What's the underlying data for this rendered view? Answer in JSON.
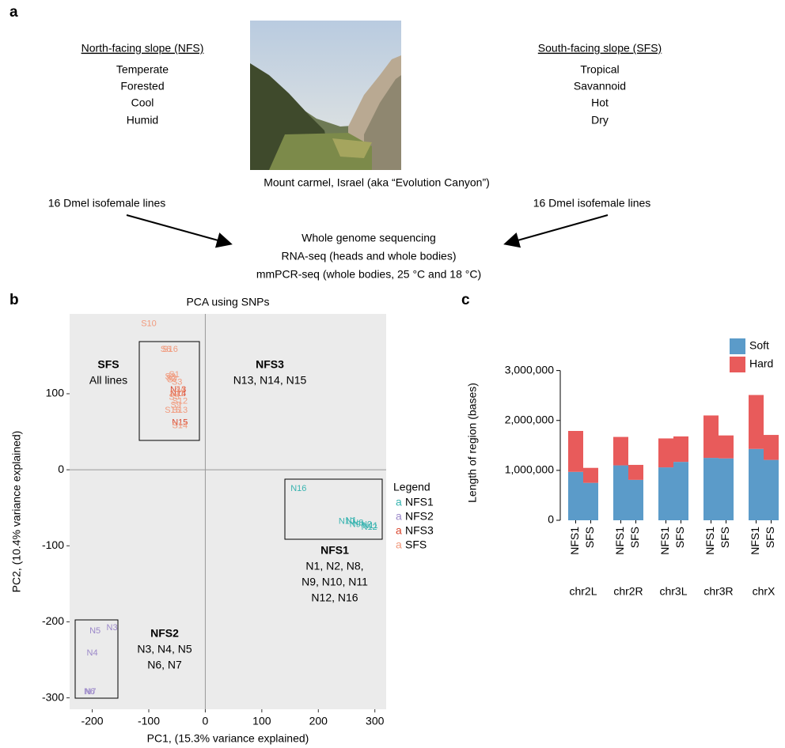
{
  "panel_a": {
    "panel_label": "a",
    "nfs_heading": "North-facing slope (NFS)",
    "nfs_traits": [
      "Temperate",
      "Forested",
      "Cool",
      "Humid"
    ],
    "sfs_heading": "South-facing slope (SFS)",
    "sfs_traits": [
      "Tropical",
      "Savannoid",
      "Hot",
      "Dry"
    ],
    "photo_caption": "Mount carmel, Israel (aka “Evolution Canyon”)",
    "left_lines": "16 Dmel isofemale lines",
    "right_lines": "16 Dmel isofemale lines",
    "methods": [
      "Whole genome sequencing",
      "RNA-seq (heads and whole bodies)",
      "mmPCR-seq (whole bodies, 25 °C and 18 °C)"
    ]
  },
  "chart_data": [
    {
      "type": "scatter",
      "panel_label": "b",
      "title": "PCA using SNPs",
      "x_label": "PC1, (15.3% variance explained)",
      "y_label": "PC2, (10.4% variance explained)",
      "xlim": [
        -240,
        320
      ],
      "ylim": [
        -315,
        205
      ],
      "xticks": [
        -200,
        -100,
        0,
        100,
        200,
        300
      ],
      "yticks": [
        -300,
        -200,
        -100,
        0,
        100
      ],
      "legend_title": "Legend",
      "legend_key_glyph": "a",
      "series": [
        {
          "name": "NFS1",
          "color": "#38b4b0",
          "labels": [
            "N16",
            "N10",
            "N1",
            "N9",
            "N8",
            "N2",
            "N12",
            "N11"
          ],
          "x": [
            165,
            250,
            258,
            265,
            270,
            285,
            290,
            292
          ],
          "y": [
            -25,
            -68,
            -67,
            -72,
            -70,
            -72,
            -76,
            -74
          ]
        },
        {
          "name": "NFS2",
          "color": "#9b88c9",
          "labels": [
            "N3",
            "N5",
            "N4",
            "N6",
            "N7"
          ],
          "x": [
            -165,
            -195,
            -200,
            -205,
            -203
          ],
          "y": [
            -208,
            -212,
            -241,
            -292,
            -292
          ]
        },
        {
          "name": "NFS3",
          "color": "#d9472f",
          "labels": [
            "N13",
            "N14",
            "N15"
          ],
          "x": [
            -48,
            -48,
            -45
          ],
          "y": [
            105,
            100,
            62
          ]
        },
        {
          "name": "SFS",
          "color": "#f19a7d",
          "labels": [
            "S10",
            "S6",
            "S16",
            "S1",
            "S8",
            "S2",
            "S7",
            "S3",
            "S4",
            "S11",
            "S5",
            "S12",
            "S9",
            "S13",
            "S15",
            "S14"
          ],
          "x": [
            -100,
            -70,
            -62,
            -55,
            -62,
            -60,
            -58,
            -50,
            -45,
            -50,
            -55,
            -45,
            -52,
            -45,
            -58,
            -45
          ],
          "y": [
            192,
            158,
            158,
            125,
            122,
            120,
            118,
            115,
            105,
            100,
            95,
            90,
            85,
            78,
            78,
            58
          ]
        }
      ],
      "annotations": [
        {
          "title": "SFS",
          "lines": [
            "All lines"
          ]
        },
        {
          "title": "NFS3",
          "lines": [
            "N13, N14, N15"
          ]
        },
        {
          "title": "NFS1",
          "lines": [
            "N1, N2, N8,",
            "N9, N10, N11",
            "N12, N16"
          ]
        },
        {
          "title": "NFS2",
          "lines": [
            "N3, N4, N5",
            "N6, N7"
          ]
        }
      ]
    },
    {
      "type": "stacked_bar",
      "panel_label": "c",
      "y_label": "Length of region (bases)",
      "categories": [
        "NFS1",
        "SFS",
        "NFS1",
        "SFS",
        "NFS1",
        "SFS",
        "NFS1",
        "SFS",
        "NFS1",
        "SFS"
      ],
      "groups": [
        "chr2L",
        "chr2R",
        "chr3L",
        "chr3R",
        "chrX"
      ],
      "ylim": [
        0,
        3200000
      ],
      "yticks": [
        0,
        {
          "value": 1000000,
          "label": "1,000,000"
        },
        {
          "value": 2000000,
          "label": "2,000,000"
        },
        {
          "value": 3000000,
          "label": "3,000,000"
        }
      ],
      "series": [
        {
          "name": "Soft",
          "color": "#5b9bc9",
          "values": [
            970000,
            750000,
            1100000,
            810000,
            1060000,
            1170000,
            1250000,
            1240000,
            1430000,
            1210000
          ]
        },
        {
          "name": "Hard",
          "color": "#e85b5b",
          "values": [
            820000,
            300000,
            570000,
            300000,
            580000,
            510000,
            850000,
            460000,
            1080000,
            500000
          ]
        }
      ]
    }
  ]
}
